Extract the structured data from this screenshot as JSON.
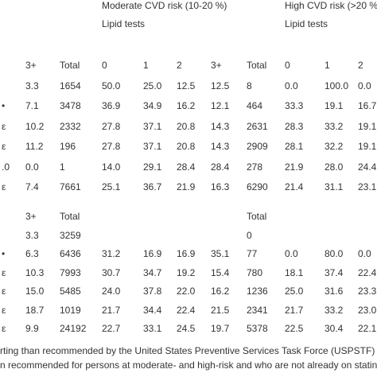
{
  "header": {
    "moderate": "Moderate CVD risk (10-20 %)",
    "high": "High CVD risk (>20 %",
    "lipid_moderate": "Lipid tests",
    "lipid_high": "Lipid tests"
  },
  "block1": {
    "rows": [
      [
        null,
        "3+",
        "Total",
        "0",
        "1",
        "2",
        "3+",
        "Total",
        "0",
        "1",
        "2"
      ],
      [
        null,
        "3.3",
        "1654",
        "50.0",
        "25.0",
        "12.5",
        "12.5",
        "8",
        "0.0",
        "100.0",
        "0.0"
      ],
      [
        "•",
        "7.1",
        "3478",
        "36.9",
        "34.9",
        "16.2",
        "12.1",
        "464",
        "33.3",
        "19.1",
        "16.7"
      ],
      [
        "ε",
        "10.2",
        "2332",
        "27.8",
        "37.1",
        "20.8",
        "14.3",
        "2631",
        "28.3",
        "33.2",
        "19.1"
      ],
      [
        "ε",
        "11.2",
        "196",
        "27.8",
        "37.1",
        "20.8",
        "14.3",
        "2909",
        "28.1",
        "32.2",
        "19.1"
      ],
      [
        ".0",
        "0.0",
        "1",
        "14.0",
        "29.1",
        "28.4",
        "28.4",
        "278",
        "21.9",
        "28.0",
        "24.4"
      ],
      [
        "ε",
        "7.4",
        "7661",
        "25.1",
        "36.7",
        "21.9",
        "16.3",
        "6290",
        "21.4",
        "31.1",
        "23.1"
      ]
    ]
  },
  "block2": {
    "rows": [
      [
        null,
        "3+",
        "Total",
        null,
        null,
        null,
        null,
        "Total",
        null,
        null,
        null
      ],
      [
        null,
        "3.3",
        "3259",
        null,
        null,
        null,
        null,
        "0",
        null,
        null,
        null
      ],
      [
        "•",
        "6.3",
        "6436",
        "31.2",
        "16.9",
        "16.9",
        "35.1",
        "77",
        "0.0",
        "80.0",
        "0.0"
      ],
      [
        "ε",
        "10.3",
        "7993",
        "30.7",
        "34.7",
        "19.2",
        "15.4",
        "780",
        "18.1",
        "37.4",
        "22.4"
      ],
      [
        "ε",
        "15.0",
        "5485",
        "24.0",
        "37.8",
        "22.0",
        "16.2",
        "1236",
        "25.0",
        "31.6",
        "23.3"
      ],
      [
        "ε",
        "18.7",
        "1019",
        "21.7",
        "34.4",
        "22.4",
        "21.5",
        "2341",
        "21.7",
        "33.2",
        "23.0"
      ],
      [
        "ε",
        "9.9",
        "24192",
        "22.7",
        "33.1",
        "24.5",
        "19.7",
        "5378",
        "22.5",
        "30.4",
        "22.1"
      ]
    ]
  },
  "footnotes": [
    "rting than recommended by the United States Preventive Services Task Force (USPSTF) for per",
    "n recommended for persons at moderate- and high-risk and who are not already on statins. Cr"
  ]
}
